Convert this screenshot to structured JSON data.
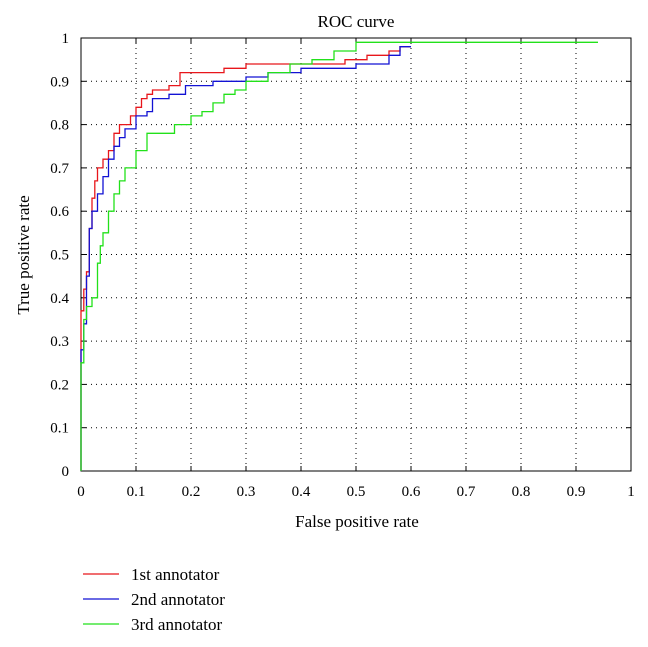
{
  "chart_data": {
    "type": "line",
    "title": "ROC curve",
    "xlabel": "False positive rate",
    "ylabel": "True positive rate",
    "xlim": [
      0,
      1
    ],
    "ylim": [
      0,
      1
    ],
    "x_ticks": [
      "0",
      "0.1",
      "0.2",
      "0.3",
      "0.4",
      "0.5",
      "0.6",
      "0.7",
      "0.8",
      "0.9",
      "1"
    ],
    "y_ticks": [
      "0",
      "0.1",
      "0.2",
      "0.3",
      "0.4",
      "0.5",
      "0.6",
      "0.7",
      "0.8",
      "0.9",
      "1"
    ],
    "grid": true,
    "legend_position": "bottom-left",
    "series": [
      {
        "name": "1st annotator",
        "color": "#e8161b",
        "x": [
          0,
          0,
          0.005,
          0.005,
          0.01,
          0.01,
          0.015,
          0.015,
          0.02,
          0.02,
          0.025,
          0.025,
          0.03,
          0.03,
          0.04,
          0.04,
          0.05,
          0.05,
          0.06,
          0.06,
          0.07,
          0.07,
          0.09,
          0.09,
          0.1,
          0.1,
          0.11,
          0.11,
          0.12,
          0.12,
          0.13,
          0.13,
          0.16,
          0.16,
          0.18,
          0.18,
          0.26,
          0.26,
          0.3,
          0.3,
          0.4,
          0.4,
          0.48,
          0.48,
          0.52,
          0.52,
          0.56,
          0.56,
          0.58,
          0.58,
          0.6
        ],
        "y": [
          0,
          0.37,
          0.37,
          0.42,
          0.42,
          0.46,
          0.46,
          0.56,
          0.56,
          0.63,
          0.63,
          0.67,
          0.67,
          0.7,
          0.7,
          0.72,
          0.72,
          0.74,
          0.74,
          0.78,
          0.78,
          0.8,
          0.8,
          0.82,
          0.82,
          0.84,
          0.84,
          0.86,
          0.86,
          0.87,
          0.87,
          0.88,
          0.88,
          0.89,
          0.89,
          0.92,
          0.92,
          0.93,
          0.93,
          0.94,
          0.94,
          0.94,
          0.94,
          0.95,
          0.95,
          0.96,
          0.96,
          0.97,
          0.97,
          0.98,
          0.98
        ]
      },
      {
        "name": "2nd annotator",
        "color": "#1212d4",
        "x": [
          0,
          0,
          0.005,
          0.005,
          0.01,
          0.01,
          0.015,
          0.015,
          0.02,
          0.02,
          0.03,
          0.03,
          0.04,
          0.04,
          0.05,
          0.05,
          0.06,
          0.06,
          0.07,
          0.07,
          0.08,
          0.08,
          0.1,
          0.1,
          0.12,
          0.12,
          0.13,
          0.13,
          0.16,
          0.16,
          0.19,
          0.19,
          0.24,
          0.24,
          0.3,
          0.3,
          0.34,
          0.34,
          0.4,
          0.4,
          0.5,
          0.5,
          0.56,
          0.56,
          0.58,
          0.58,
          0.6
        ],
        "y": [
          0,
          0.28,
          0.28,
          0.34,
          0.34,
          0.45,
          0.45,
          0.56,
          0.56,
          0.6,
          0.6,
          0.64,
          0.64,
          0.68,
          0.68,
          0.72,
          0.72,
          0.75,
          0.75,
          0.77,
          0.77,
          0.79,
          0.79,
          0.82,
          0.82,
          0.83,
          0.83,
          0.86,
          0.86,
          0.87,
          0.87,
          0.89,
          0.89,
          0.9,
          0.9,
          0.91,
          0.91,
          0.92,
          0.92,
          0.93,
          0.93,
          0.94,
          0.94,
          0.96,
          0.96,
          0.98,
          0.98
        ]
      },
      {
        "name": "3rd annotator",
        "color": "#22e11a",
        "x": [
          0,
          0,
          0.005,
          0.005,
          0.01,
          0.01,
          0.02,
          0.02,
          0.03,
          0.03,
          0.035,
          0.035,
          0.04,
          0.04,
          0.05,
          0.05,
          0.06,
          0.06,
          0.07,
          0.07,
          0.08,
          0.08,
          0.1,
          0.1,
          0.12,
          0.12,
          0.17,
          0.17,
          0.2,
          0.2,
          0.22,
          0.22,
          0.24,
          0.24,
          0.26,
          0.26,
          0.28,
          0.28,
          0.3,
          0.3,
          0.34,
          0.34,
          0.38,
          0.38,
          0.42,
          0.42,
          0.46,
          0.46,
          0.5,
          0.5,
          0.94
        ],
        "y": [
          0,
          0.25,
          0.25,
          0.35,
          0.35,
          0.38,
          0.38,
          0.4,
          0.4,
          0.48,
          0.48,
          0.52,
          0.52,
          0.55,
          0.55,
          0.6,
          0.6,
          0.64,
          0.64,
          0.67,
          0.67,
          0.7,
          0.7,
          0.74,
          0.74,
          0.78,
          0.78,
          0.8,
          0.8,
          0.82,
          0.82,
          0.83,
          0.83,
          0.85,
          0.85,
          0.87,
          0.87,
          0.88,
          0.88,
          0.9,
          0.9,
          0.92,
          0.92,
          0.94,
          0.94,
          0.95,
          0.95,
          0.97,
          0.97,
          0.99,
          0.99
        ]
      }
    ]
  }
}
